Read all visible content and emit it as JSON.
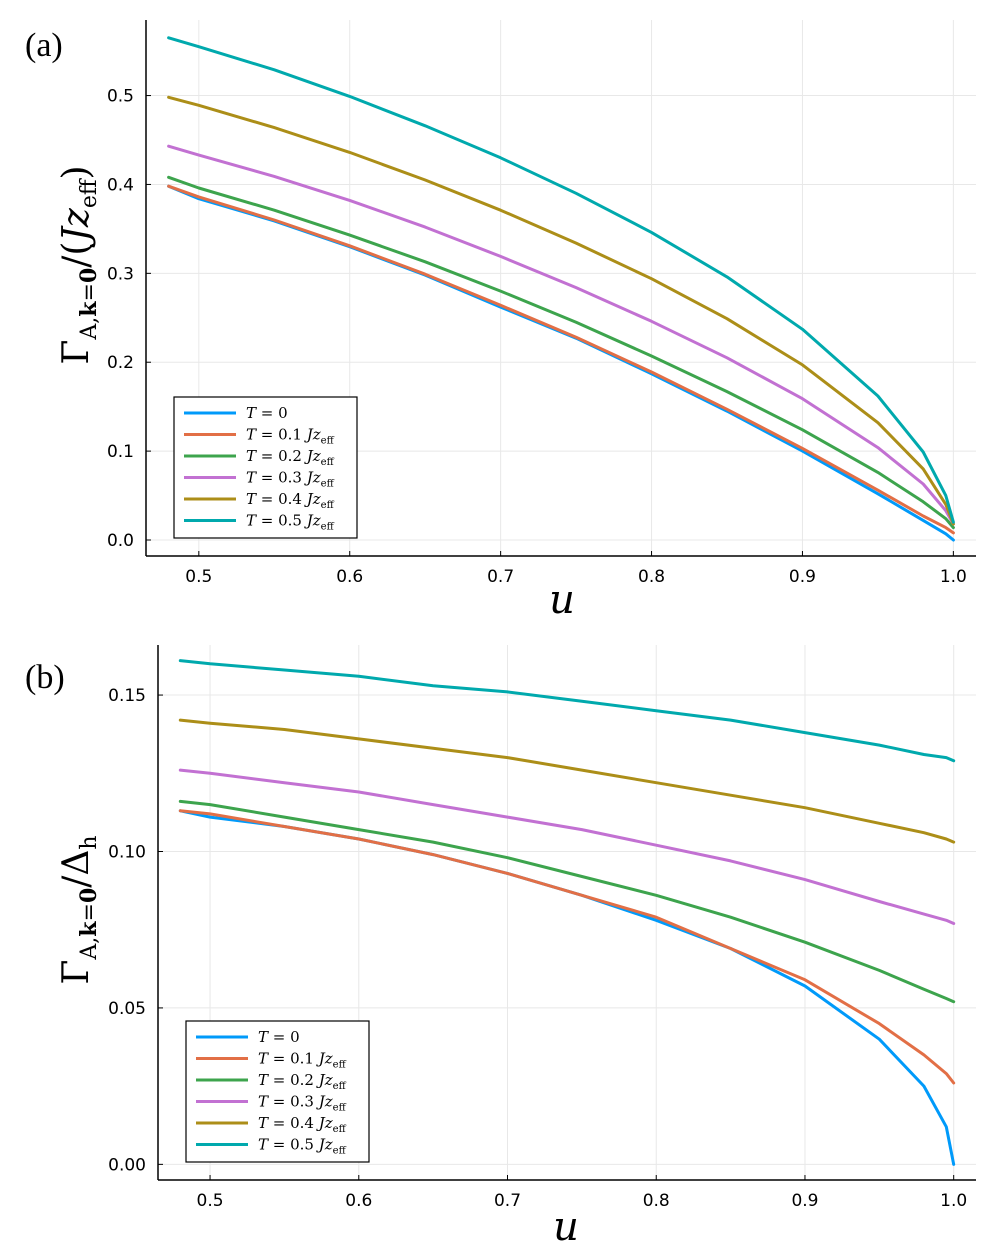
{
  "chart_data": [
    {
      "type": "line",
      "panel_label": "(a)",
      "xlabel": "u",
      "ylabel": "Γ_{A,k=0}/(J z_eff)",
      "xlim": [
        0.465,
        1.015
      ],
      "ylim": [
        -0.018,
        0.585
      ],
      "xticks": [
        0.5,
        0.6,
        0.7,
        0.8,
        0.9,
        1.0
      ],
      "xtick_labels": [
        "0.5",
        "0.6",
        "0.7",
        "0.8",
        "0.9",
        "1.0"
      ],
      "yticks": [
        0.0,
        0.1,
        0.2,
        0.3,
        0.4,
        0.5
      ],
      "ytick_labels": [
        "0.0",
        "0.1",
        "0.2",
        "0.3",
        "0.4",
        "0.5"
      ],
      "grid": true,
      "legend_position": "bottom-left",
      "series": [
        {
          "name": "T = 0",
          "color": "#009AFA",
          "x": [
            0.48,
            0.5,
            0.55,
            0.6,
            0.65,
            0.7,
            0.75,
            0.8,
            0.85,
            0.9,
            0.95,
            0.98,
            0.995,
            1.0
          ],
          "y": [
            0.398,
            0.384,
            0.359,
            0.33,
            0.298,
            0.262,
            0.227,
            0.187,
            0.145,
            0.1,
            0.052,
            0.022,
            0.007,
            0.0
          ]
        },
        {
          "name": "T = 0.1 Jz_eff",
          "color": "#E26F46",
          "x": [
            0.48,
            0.5,
            0.55,
            0.6,
            0.65,
            0.7,
            0.75,
            0.8,
            0.85,
            0.9,
            0.95,
            0.98,
            0.995,
            1.0
          ],
          "y": [
            0.398,
            0.386,
            0.36,
            0.331,
            0.299,
            0.264,
            0.228,
            0.189,
            0.147,
            0.103,
            0.056,
            0.027,
            0.014,
            0.008
          ]
        },
        {
          "name": "T = 0.2 Jz_eff",
          "color": "#3DA44D",
          "x": [
            0.48,
            0.5,
            0.55,
            0.6,
            0.65,
            0.7,
            0.75,
            0.8,
            0.85,
            0.9,
            0.95,
            0.98,
            0.995,
            1.0
          ],
          "y": [
            0.408,
            0.396,
            0.371,
            0.343,
            0.313,
            0.28,
            0.245,
            0.207,
            0.167,
            0.124,
            0.076,
            0.043,
            0.024,
            0.014
          ]
        },
        {
          "name": "T = 0.3 Jz_eff",
          "color": "#C271D2",
          "x": [
            0.48,
            0.5,
            0.55,
            0.6,
            0.65,
            0.7,
            0.75,
            0.8,
            0.85,
            0.9,
            0.95,
            0.98,
            0.995,
            1.0
          ],
          "y": [
            0.443,
            0.433,
            0.409,
            0.382,
            0.352,
            0.319,
            0.284,
            0.246,
            0.205,
            0.159,
            0.104,
            0.063,
            0.033,
            0.018
          ]
        },
        {
          "name": "T = 0.4 Jz_eff",
          "color": "#AC8E18",
          "x": [
            0.48,
            0.5,
            0.55,
            0.6,
            0.65,
            0.7,
            0.75,
            0.8,
            0.85,
            0.9,
            0.95,
            0.98,
            0.995,
            1.0
          ],
          "y": [
            0.498,
            0.489,
            0.464,
            0.436,
            0.405,
            0.371,
            0.334,
            0.294,
            0.249,
            0.197,
            0.132,
            0.08,
            0.04,
            0.018
          ]
        },
        {
          "name": "T = 0.5 Jz_eff",
          "color": "#00A9AD",
          "x": [
            0.48,
            0.5,
            0.55,
            0.6,
            0.65,
            0.7,
            0.75,
            0.8,
            0.85,
            0.9,
            0.95,
            0.98,
            0.995,
            1.0
          ],
          "y": [
            0.565,
            0.555,
            0.529,
            0.499,
            0.466,
            0.43,
            0.39,
            0.346,
            0.296,
            0.237,
            0.162,
            0.099,
            0.05,
            0.02
          ]
        }
      ]
    },
    {
      "type": "line",
      "panel_label": "(b)",
      "xlabel": "u",
      "ylabel": "Γ_{A,k=0}/Δ_h",
      "xlim": [
        0.465,
        1.015
      ],
      "ylim": [
        -0.005,
        0.166
      ],
      "xticks": [
        0.5,
        0.6,
        0.7,
        0.8,
        0.9,
        1.0
      ],
      "xtick_labels": [
        "0.5",
        "0.6",
        "0.7",
        "0.8",
        "0.9",
        "1.0"
      ],
      "yticks": [
        0.0,
        0.05,
        0.1,
        0.15
      ],
      "ytick_labels": [
        "0.00",
        "0.05",
        "0.10",
        "0.15"
      ],
      "grid": true,
      "legend_position": "bottom-left",
      "series": [
        {
          "name": "T = 0",
          "color": "#009AFA",
          "x": [
            0.48,
            0.5,
            0.55,
            0.6,
            0.65,
            0.7,
            0.75,
            0.8,
            0.85,
            0.9,
            0.95,
            0.98,
            0.995,
            1.0
          ],
          "y": [
            0.113,
            0.111,
            0.108,
            0.104,
            0.099,
            0.093,
            0.086,
            0.078,
            0.069,
            0.057,
            0.04,
            0.025,
            0.012,
            0.0
          ]
        },
        {
          "name": "T = 0.1 Jz_eff",
          "color": "#E26F46",
          "x": [
            0.48,
            0.5,
            0.55,
            0.6,
            0.65,
            0.7,
            0.75,
            0.8,
            0.85,
            0.9,
            0.95,
            0.98,
            0.995,
            1.0
          ],
          "y": [
            0.113,
            0.112,
            0.108,
            0.104,
            0.099,
            0.093,
            0.086,
            0.079,
            0.069,
            0.059,
            0.045,
            0.035,
            0.029,
            0.026
          ]
        },
        {
          "name": "T = 0.2 Jz_eff",
          "color": "#3DA44D",
          "x": [
            0.48,
            0.5,
            0.55,
            0.6,
            0.65,
            0.7,
            0.75,
            0.8,
            0.85,
            0.9,
            0.95,
            0.98,
            0.995,
            1.0
          ],
          "y": [
            0.116,
            0.115,
            0.111,
            0.107,
            0.103,
            0.098,
            0.092,
            0.086,
            0.079,
            0.071,
            0.062,
            0.056,
            0.053,
            0.052
          ]
        },
        {
          "name": "T = 0.3 Jz_eff",
          "color": "#C271D2",
          "x": [
            0.48,
            0.5,
            0.55,
            0.6,
            0.65,
            0.7,
            0.75,
            0.8,
            0.85,
            0.9,
            0.95,
            0.98,
            0.995,
            1.0
          ],
          "y": [
            0.126,
            0.125,
            0.122,
            0.119,
            0.115,
            0.111,
            0.107,
            0.102,
            0.097,
            0.091,
            0.084,
            0.08,
            0.078,
            0.077
          ]
        },
        {
          "name": "T = 0.4 Jz_eff",
          "color": "#AC8E18",
          "x": [
            0.48,
            0.5,
            0.55,
            0.6,
            0.65,
            0.7,
            0.75,
            0.8,
            0.85,
            0.9,
            0.95,
            0.98,
            0.995,
            1.0
          ],
          "y": [
            0.142,
            0.141,
            0.139,
            0.136,
            0.133,
            0.13,
            0.126,
            0.122,
            0.118,
            0.114,
            0.109,
            0.106,
            0.104,
            0.103
          ]
        },
        {
          "name": "T = 0.5 Jz_eff",
          "color": "#00A9AD",
          "x": [
            0.48,
            0.5,
            0.55,
            0.6,
            0.65,
            0.7,
            0.75,
            0.8,
            0.85,
            0.9,
            0.95,
            0.98,
            0.995,
            1.0
          ],
          "y": [
            0.161,
            0.16,
            0.158,
            0.156,
            0.153,
            0.151,
            0.148,
            0.145,
            0.142,
            0.138,
            0.134,
            0.131,
            0.13,
            0.129
          ]
        }
      ]
    }
  ]
}
